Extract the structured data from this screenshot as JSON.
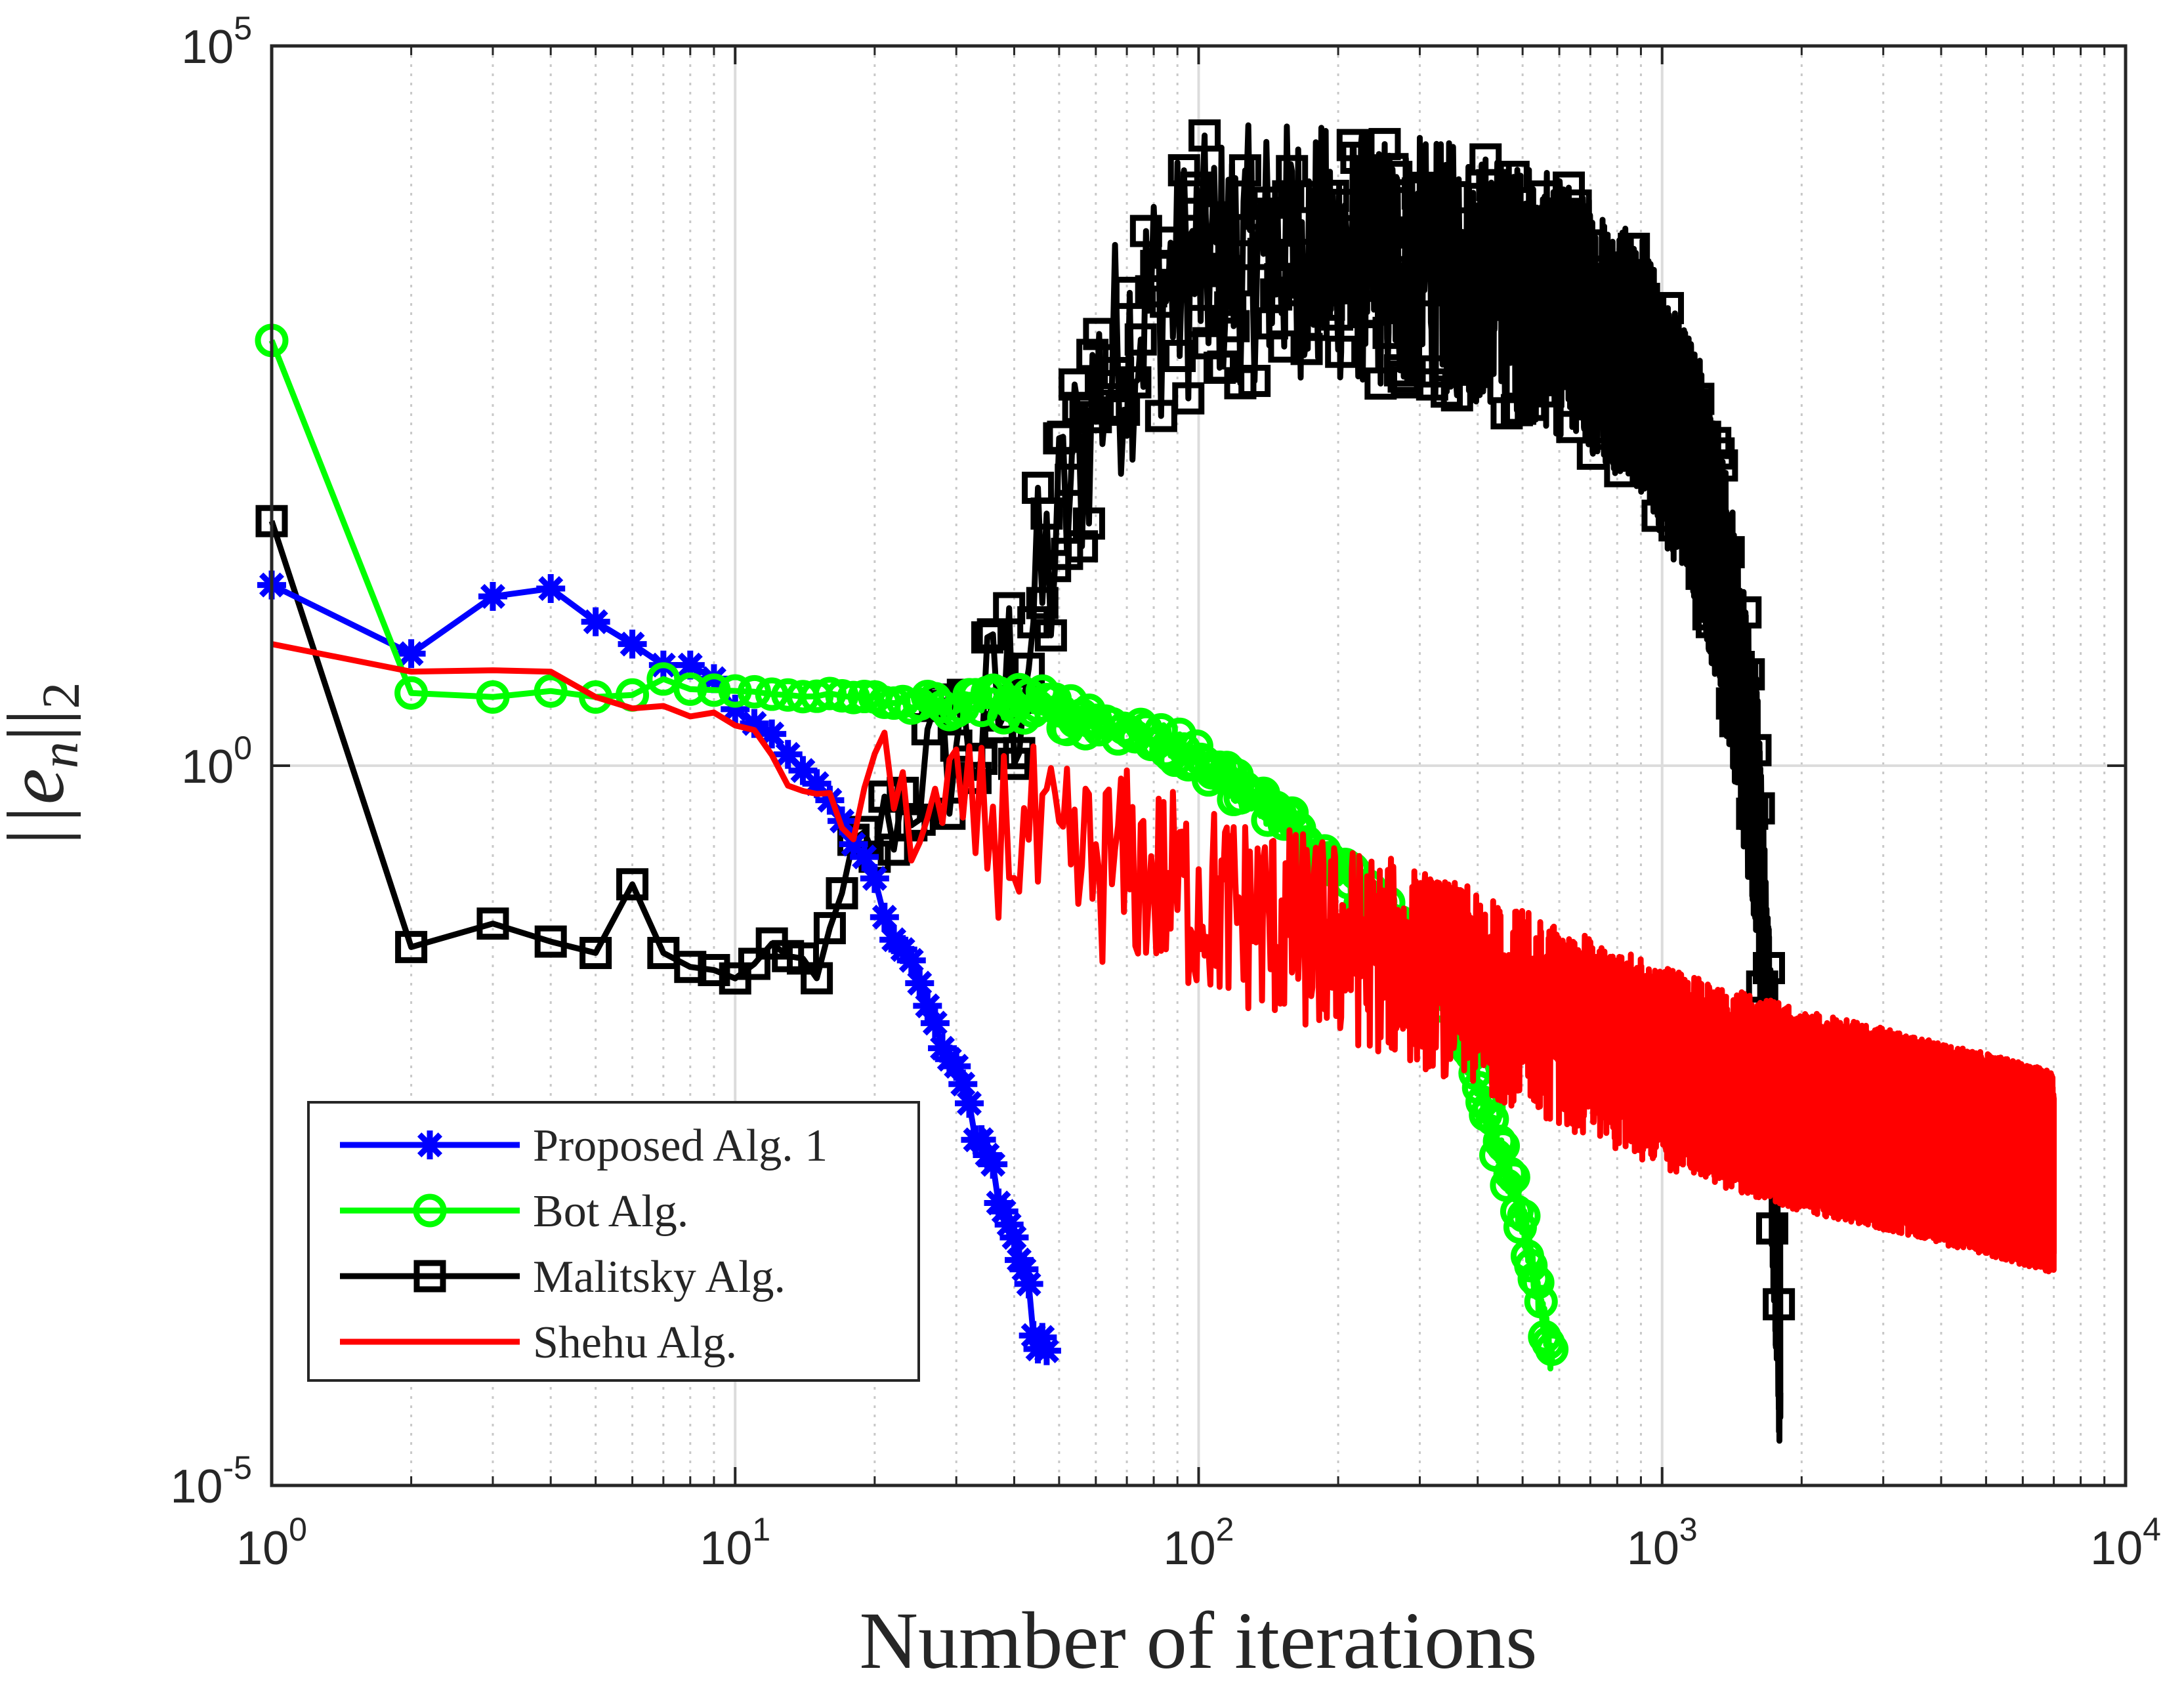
{
  "chart_data": {
    "type": "line",
    "xscale": "log",
    "yscale": "log",
    "xlim": [
      1,
      10000
    ],
    "ylim": [
      1e-05,
      100000
    ],
    "xlabel": "Number of iterations",
    "ylabel_text": "||e",
    "ylabel_sub_n": "n",
    "ylabel_close": "||",
    "ylabel_sub_2": "2",
    "x_ticks": [
      {
        "base": "10",
        "exp": "0",
        "value": 1
      },
      {
        "base": "10",
        "exp": "1",
        "value": 10
      },
      {
        "base": "10",
        "exp": "2",
        "value": 100
      },
      {
        "base": "10",
        "exp": "3",
        "value": 1000
      },
      {
        "base": "10",
        "exp": "4",
        "value": 10000
      }
    ],
    "y_ticks": [
      {
        "base": "10",
        "exp": "-5",
        "value": 1e-05
      },
      {
        "base": "10",
        "exp": "0",
        "value": 1
      },
      {
        "base": "10",
        "exp": "5",
        "value": 100000
      }
    ],
    "grid": true,
    "legend_position": "bottom-left",
    "series": [
      {
        "name": "Proposed Alg. 1",
        "color": "#0000ff",
        "marker": "asterisk",
        "trend": {
          "x": [
            1,
            2,
            3,
            4,
            5,
            6,
            7,
            8,
            9,
            10,
            12,
            14,
            16,
            18,
            20,
            22,
            25,
            28,
            31,
            35,
            40,
            44,
            47
          ],
          "y": [
            18,
            6,
            15,
            17,
            10,
            7,
            5,
            5,
            4,
            2.5,
            1.6,
            0.9,
            0.55,
            0.3,
            0.15,
            0.07,
            0.03,
            0.012,
            0.005,
            0.0018,
            0.0005,
            0.00015,
            7e-05
          ]
        },
        "noise": 0.15
      },
      {
        "name": "Bot Alg.",
        "color": "#00ff00",
        "marker": "circle",
        "trend": {
          "x": [
            1,
            2,
            3,
            4,
            5,
            6,
            7,
            8,
            10,
            15,
            20,
            30,
            40,
            60,
            80,
            100,
            150,
            200,
            300,
            350,
            400,
            500,
            580
          ],
          "y": [
            900,
            3.2,
            3,
            3.3,
            3,
            3.1,
            4,
            3.4,
            3.3,
            3.1,
            2.8,
            2.6,
            2.8,
            2.1,
            1.6,
            1.05,
            0.45,
            0.2,
            0.05,
            0.02,
            0.006,
            0.0007,
            7e-05
          ]
        },
        "noise": 0.12
      },
      {
        "name": "Malitsky Alg.",
        "color": "#000000",
        "marker": "square",
        "trend": {
          "x": [
            1,
            2,
            3,
            4,
            5,
            6,
            7,
            8,
            10,
            12,
            14,
            16,
            18,
            20,
            25,
            30,
            35,
            40,
            45,
            50,
            60,
            80,
            100,
            150,
            200,
            300,
            400,
            500,
            700,
            900,
            1000,
            1200,
            1400,
            1600,
            1700,
            1800
          ],
          "y": [
            50,
            0.055,
            0.08,
            0.06,
            0.05,
            0.15,
            0.05,
            0.04,
            0.035,
            0.045,
            0.04,
            0.05,
            0.2,
            0.3,
            0.8,
            1.5,
            1.8,
            4,
            12,
            40,
            400,
            1800,
            3000,
            4000,
            3500,
            3000,
            2500,
            2000,
            1200,
            600,
            300,
            100,
            10,
            0.5,
            0.01,
            0.0001
          ]
        },
        "noise": 0.9
      },
      {
        "name": "Shehu Alg.",
        "color": "#ff0000",
        "marker": "none",
        "trend": {
          "x": [
            1,
            2,
            3,
            4,
            5,
            6,
            7,
            8,
            9,
            10,
            12,
            15,
            18,
            20,
            25,
            30,
            40,
            50,
            70,
            100,
            200,
            300,
            500,
            1000,
            2000,
            3000,
            5000,
            7000
          ],
          "y": [
            7,
            4.5,
            4.6,
            4.5,
            3,
            2.5,
            2.6,
            2.2,
            2.4,
            2,
            1.2,
            0.5,
            0.4,
            1.2,
            0.35,
            0.45,
            0.35,
            0.2,
            0.2,
            0.12,
            0.06,
            0.04,
            0.02,
            0.008,
            0.004,
            0.003,
            0.002,
            0.0015
          ]
        },
        "noise": 0.7
      }
    ]
  }
}
